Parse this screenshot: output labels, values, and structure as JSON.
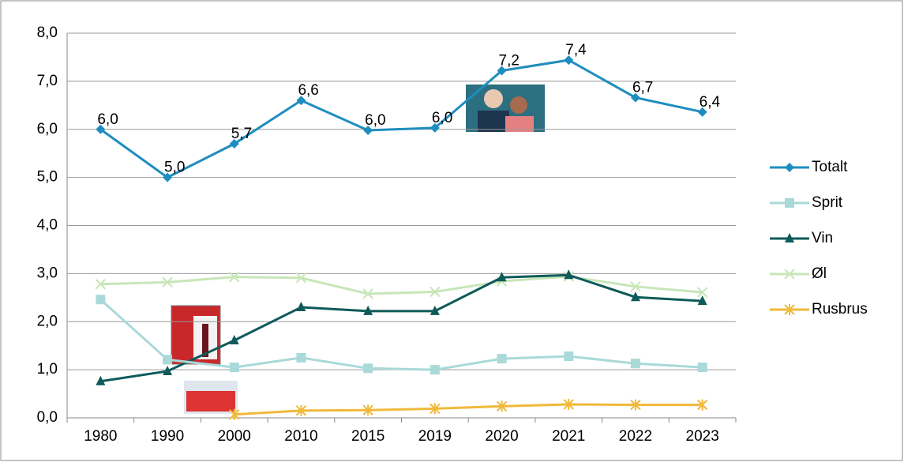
{
  "chart_data": {
    "type": "line",
    "categories": [
      "1980",
      "1990",
      "2000",
      "2010",
      "2015",
      "2019",
      "2020",
      "2021",
      "2022",
      "2023"
    ],
    "ylim": [
      0,
      8
    ],
    "yticks": [
      {
        "value": 0,
        "label": "0,0"
      },
      {
        "value": 1,
        "label": "1,0"
      },
      {
        "value": 2,
        "label": "2,0"
      },
      {
        "value": 3,
        "label": "3,0"
      },
      {
        "value": 4,
        "label": "4,0"
      },
      {
        "value": 5,
        "label": "5,0"
      },
      {
        "value": 6,
        "label": "6,0"
      },
      {
        "value": 7,
        "label": "7,0"
      },
      {
        "value": 8,
        "label": "8,0"
      }
    ],
    "grid": true,
    "legend": "right",
    "series": [
      {
        "name": "Totalt",
        "color": "#1f8dbf",
        "marker": "diamond",
        "values": [
          6.0,
          5.0,
          5.7,
          6.6,
          5.98,
          6.03,
          7.22,
          7.44,
          6.66,
          6.36
        ],
        "value_labels": [
          "6,0",
          "5,0",
          "5,7",
          "6,6",
          "6,0",
          "6,0",
          "7,2",
          "7,4",
          "6,7",
          "6,4"
        ]
      },
      {
        "name": "Sprit",
        "color": "#a9d9d9",
        "marker": "square",
        "values": [
          2.46,
          1.21,
          1.05,
          1.25,
          1.03,
          1.0,
          1.23,
          1.28,
          1.13,
          1.05
        ]
      },
      {
        "name": "Vin",
        "color": "#0f5a5a",
        "marker": "triangle",
        "values": [
          0.76,
          0.97,
          1.61,
          2.3,
          2.22,
          2.22,
          2.92,
          2.97,
          2.51,
          2.43
        ]
      },
      {
        "name": "Øl",
        "color": "#c8e6b8",
        "marker": "x",
        "values": [
          2.78,
          2.82,
          2.93,
          2.91,
          2.58,
          2.62,
          2.84,
          2.94,
          2.73,
          2.61
        ]
      },
      {
        "name": "Rusbrus",
        "color": "#f0b93a",
        "marker": "asterisk",
        "values": [
          null,
          null,
          0.07,
          0.15,
          0.16,
          0.19,
          0.24,
          0.28,
          0.27,
          0.27
        ]
      }
    ]
  }
}
